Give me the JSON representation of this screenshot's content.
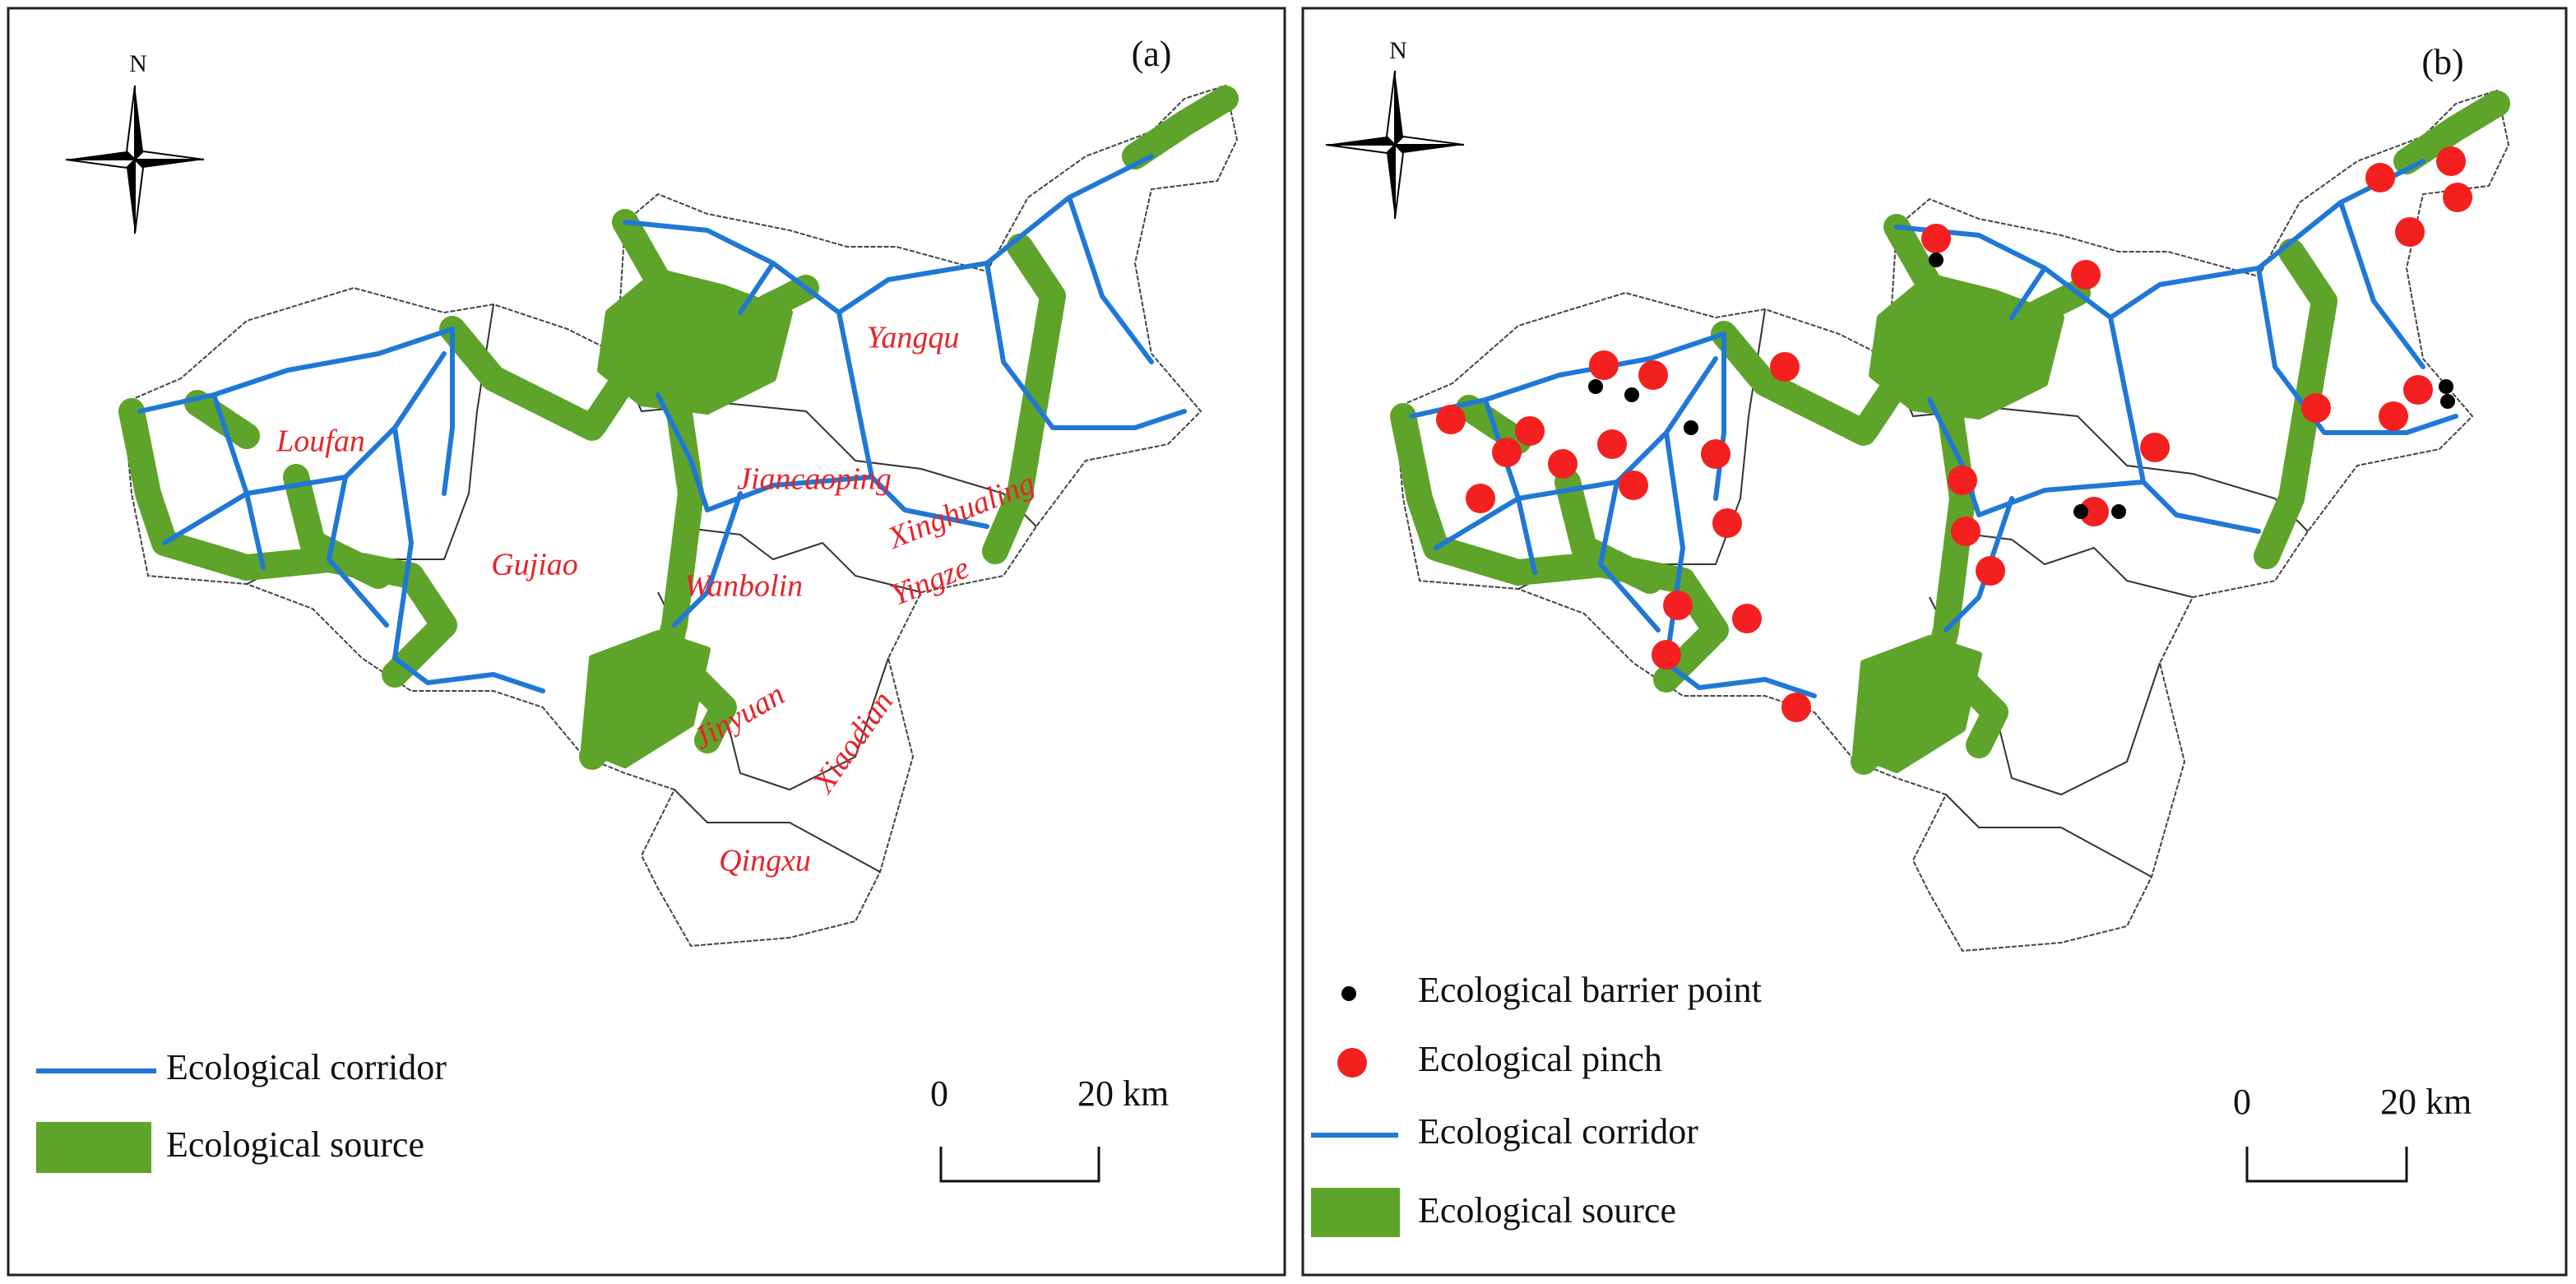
{
  "panels": [
    {
      "label": "(a)",
      "north": "N",
      "districts": [
        "Loufan",
        "Gujiao",
        "Jiancaoping",
        "Yangqu",
        "Xinghualing",
        "Wanbolin",
        "Yingze",
        "Jinyuan",
        "Xiaodian",
        "Qingxu"
      ],
      "legend": [
        "Ecological corridor",
        "Ecological source"
      ],
      "scale": {
        "start": "0",
        "end": "20 km"
      }
    },
    {
      "label": "(b)",
      "north": "N",
      "legend": [
        "Ecological barrier point",
        "Ecological pinch",
        "Ecological corridor",
        "Ecological source"
      ],
      "scale": {
        "start": "0",
        "end": "20 km"
      }
    }
  ]
}
